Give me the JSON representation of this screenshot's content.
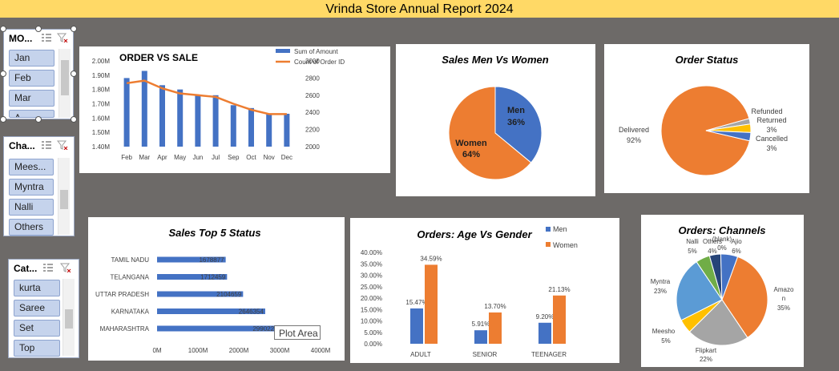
{
  "report_title": "Vrinda Store Annual Report 2024",
  "slicers": {
    "month": {
      "title": "MO...",
      "items": [
        "Jan",
        "Feb",
        "Mar",
        "A..."
      ]
    },
    "channel": {
      "title": "Cha...",
      "items": [
        "Mees...",
        "Myntra",
        "Nalli",
        "Others"
      ]
    },
    "category": {
      "title": "Cat...",
      "items": [
        "kurta",
        "Saree",
        "Set",
        "Top"
      ]
    }
  },
  "colors": {
    "blue": "#4472c4",
    "orange": "#ed7d31",
    "gray": "#a5a5a5",
    "yellow": "#ffc000",
    "lightblue": "#5b9bd5",
    "green": "#70ad47",
    "navy": "#264478"
  },
  "tooltip": "Plot Area",
  "chart_data": [
    {
      "id": "order_vs_sale",
      "type": "bar",
      "title": "ORDER VS SALE",
      "categories": [
        "Feb",
        "Mar",
        "Apr",
        "May",
        "Jun",
        "Jul",
        "Sep",
        "Oct",
        "Nov",
        "Dec"
      ],
      "series": [
        {
          "name": "Sum of Amount",
          "type": "bar",
          "values": [
            1.88,
            1.93,
            1.83,
            1.8,
            1.76,
            1.76,
            1.69,
            1.67,
            1.63,
            1.63
          ]
        },
        {
          "name": "Count of Order ID",
          "type": "line",
          "axis": "secondary",
          "values": [
            2740,
            2770,
            2680,
            2620,
            2600,
            2580,
            2500,
            2430,
            2380,
            2380
          ]
        }
      ],
      "y_ticks": [
        "1.40M",
        "1.50M",
        "1.60M",
        "1.70M",
        "1.80M",
        "1.90M",
        "2.00M"
      ],
      "ylim": [
        1.4,
        2.0
      ],
      "y2_ticks": [
        "2000",
        "2200",
        "2400",
        "2600",
        "2800",
        "3000"
      ],
      "y2lim": [
        2000,
        3000
      ],
      "legend": "top-right"
    },
    {
      "id": "sales_men_women",
      "type": "pie",
      "title": "Sales Men Vs Women",
      "labels": [
        "Men",
        "Women"
      ],
      "values": [
        36,
        64
      ],
      "value_labels": [
        "36%",
        "64%"
      ]
    },
    {
      "id": "order_status",
      "type": "pie",
      "title": "Order Status",
      "labels": [
        "Delivered",
        "Refunded",
        "Returned",
        "Cancelled"
      ],
      "values": [
        92,
        2,
        3,
        3
      ],
      "value_labels": [
        "92%",
        "",
        "3%",
        "3%"
      ]
    },
    {
      "id": "sales_top5_states",
      "type": "bar",
      "orientation": "horizontal",
      "title": "Sales Top 5 Status",
      "categories": [
        "TAMIL NADU",
        "TELANGANA",
        "UTTAR PRADESH",
        "KARNATAKA",
        "MAHARASHTRA"
      ],
      "values": [
        1678877,
        1712459,
        2104659,
        2646354,
        2990221
      ],
      "x_ticks": [
        "0M",
        "1000M",
        "2000M",
        "3000M",
        "4000M"
      ],
      "xlim": [
        0,
        4000000
      ]
    },
    {
      "id": "age_vs_gender",
      "type": "bar",
      "title": "Orders: Age Vs Gender",
      "categories": [
        "ADULT",
        "SENIOR",
        "TEENAGER"
      ],
      "series": [
        {
          "name": "Men",
          "values": [
            15.47,
            5.91,
            9.2
          ],
          "labels": [
            "15.47%",
            "5.91%",
            "9.20%"
          ]
        },
        {
          "name": "Women",
          "values": [
            34.59,
            13.7,
            21.13
          ],
          "labels": [
            "34.59%",
            "13.70%",
            "21.13%"
          ]
        }
      ],
      "y_ticks": [
        "0.00%",
        "5.00%",
        "10.00%",
        "15.00%",
        "20.00%",
        "25.00%",
        "30.00%",
        "35.00%",
        "40.00%"
      ],
      "ylim": [
        0,
        40
      ],
      "legend": "top-right"
    },
    {
      "id": "order_channels",
      "type": "pie",
      "title": "Orders: Channels",
      "labels": [
        "Amazon",
        "Flipkart",
        "Meesho",
        "Myntra",
        "Nalli",
        "Others",
        "(blank)",
        "Ajio"
      ],
      "values": [
        35,
        22,
        5,
        23,
        5,
        4,
        0,
        6
      ],
      "value_labels": [
        "35%",
        "22%",
        "5%",
        "23%",
        "5%",
        "4%",
        "0%",
        "6%"
      ]
    }
  ]
}
